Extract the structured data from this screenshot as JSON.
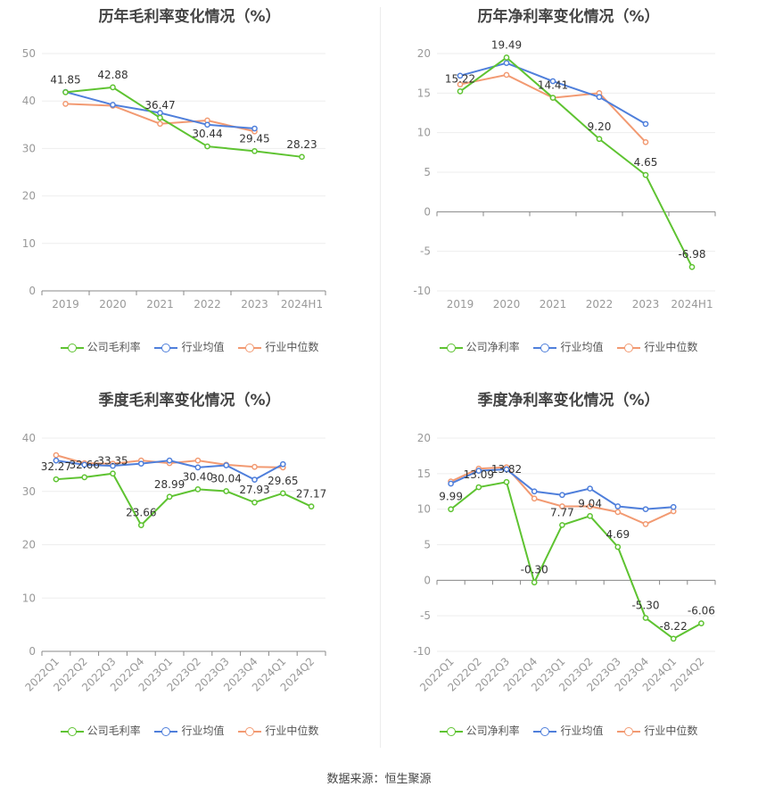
{
  "colors": {
    "company": "#5ec331",
    "avg": "#4f7fdb",
    "median": "#f29a72",
    "axis": "#999999",
    "grid": "#eeeeee"
  },
  "source": "数据来源：恒生聚源",
  "chart_data": [
    {
      "type": "line",
      "title": "历年毛利率变化情况（%）",
      "categories": [
        "2019",
        "2020",
        "2021",
        "2022",
        "2023",
        "2024H1"
      ],
      "ylim": [
        0,
        50
      ],
      "yticks": [
        0,
        10,
        20,
        30,
        40,
        50
      ],
      "series": [
        {
          "name": "公司毛利率",
          "values": [
            41.85,
            42.88,
            36.47,
            30.44,
            29.45,
            28.23
          ],
          "labels": [
            "41.85",
            "42.88",
            "36.47",
            "30.44",
            "29.45",
            "28.23"
          ]
        },
        {
          "name": "行业均值",
          "values": [
            41.9,
            39.2,
            37.5,
            35.0,
            34.2,
            null
          ]
        },
        {
          "name": "行业中位数",
          "values": [
            39.4,
            39.0,
            35.2,
            35.9,
            33.6,
            null
          ]
        }
      ],
      "legend": "bottom",
      "grid": true
    },
    {
      "type": "line",
      "title": "历年净利率变化情况（%）",
      "categories": [
        "2019",
        "2020",
        "2021",
        "2022",
        "2023",
        "2024H1"
      ],
      "ylim": [
        -10,
        20
      ],
      "yticks": [
        -10,
        -5,
        0,
        5,
        10,
        15,
        20
      ],
      "series": [
        {
          "name": "公司净利率",
          "values": [
            15.22,
            19.49,
            14.41,
            9.2,
            4.65,
            -6.98
          ],
          "labels": [
            "15.22",
            "19.49",
            "14.41",
            "9.20",
            "4.65",
            "-6.98"
          ]
        },
        {
          "name": "行业均值",
          "values": [
            17.2,
            18.8,
            16.5,
            14.5,
            11.1,
            null
          ]
        },
        {
          "name": "行业中位数",
          "values": [
            16.1,
            17.3,
            14.4,
            15.0,
            8.8,
            null
          ]
        }
      ],
      "legend": "bottom",
      "grid": true
    },
    {
      "type": "line",
      "title": "季度毛利率变化情况（%）",
      "categories": [
        "2022Q1",
        "2022Q2",
        "2022Q3",
        "2022Q4",
        "2023Q1",
        "2023Q2",
        "2023Q3",
        "2023Q4",
        "2024Q1",
        "2024Q2"
      ],
      "ylim": [
        0,
        40
      ],
      "yticks": [
        0,
        10,
        20,
        30,
        40
      ],
      "series": [
        {
          "name": "公司毛利率",
          "values": [
            32.27,
            32.66,
            33.35,
            23.66,
            28.99,
            30.4,
            30.04,
            27.93,
            29.65,
            27.17
          ],
          "labels": [
            "32.27",
            "32.66",
            "33.35",
            "23.66",
            "28.99",
            "30.40",
            "30.04",
            "27.93",
            "29.65",
            "27.17"
          ]
        },
        {
          "name": "行业均值",
          "values": [
            35.8,
            35.0,
            34.8,
            35.2,
            35.8,
            34.5,
            34.9,
            32.2,
            35.1,
            null
          ]
        },
        {
          "name": "行业中位数",
          "values": [
            36.8,
            35.3,
            35.2,
            35.8,
            35.3,
            35.8,
            35.0,
            34.6,
            34.5,
            null
          ]
        }
      ],
      "legend": "bottom",
      "grid": true
    },
    {
      "type": "line",
      "title": "季度净利率变化情况（%）",
      "categories": [
        "2022Q1",
        "2022Q2",
        "2022Q3",
        "2022Q4",
        "2023Q1",
        "2023Q2",
        "2023Q3",
        "2023Q4",
        "2024Q1",
        "2024Q2"
      ],
      "ylim": [
        -10,
        20
      ],
      "yticks": [
        -10,
        -5,
        0,
        5,
        10,
        15,
        20
      ],
      "series": [
        {
          "name": "公司净利率",
          "values": [
            9.99,
            13.09,
            13.82,
            -0.3,
            7.77,
            9.04,
            4.69,
            -5.3,
            -8.22,
            -6.06
          ],
          "labels": [
            "9.99",
            "13.09",
            "13.82",
            "-0.30",
            "7.77",
            "9.04",
            "4.69",
            "-5.30",
            "-8.22",
            "-6.06"
          ]
        },
        {
          "name": "行业均值",
          "values": [
            13.6,
            15.4,
            15.6,
            12.5,
            12.0,
            12.9,
            10.4,
            10.0,
            10.3,
            null
          ]
        },
        {
          "name": "行业中位数",
          "values": [
            13.9,
            15.7,
            15.9,
            11.5,
            10.4,
            10.4,
            9.6,
            7.9,
            9.7,
            null
          ]
        }
      ],
      "legend": "bottom",
      "grid": true
    }
  ]
}
